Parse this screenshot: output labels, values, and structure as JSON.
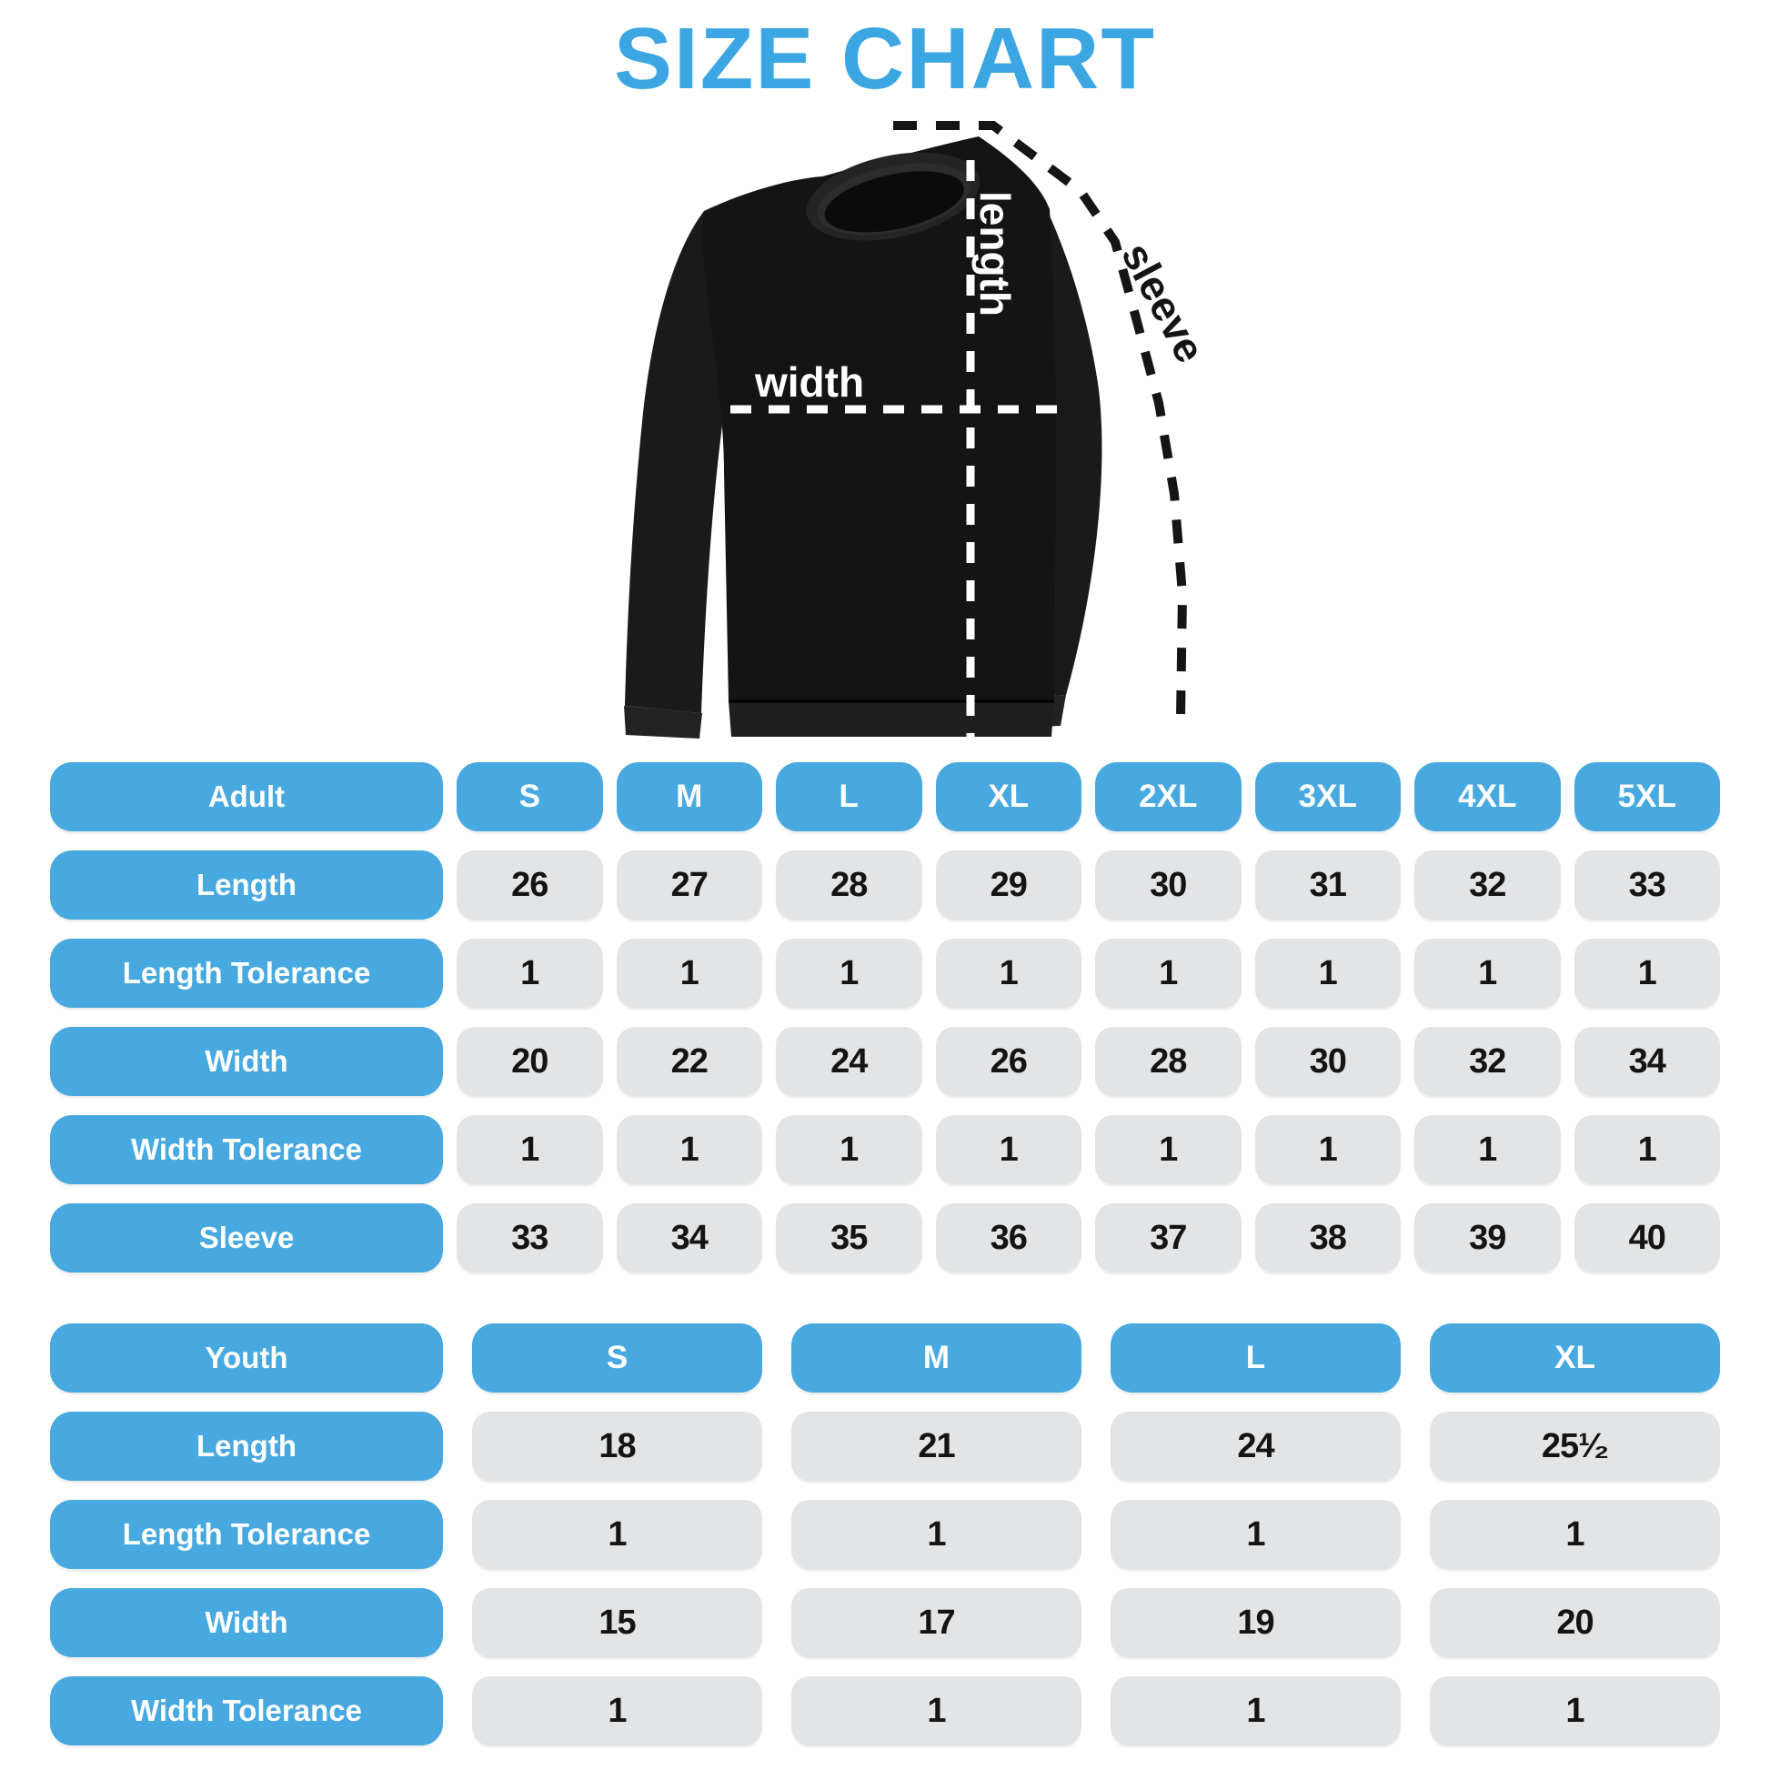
{
  "title": "SIZE CHART",
  "colors": {
    "title_blue": "#3BA6E1",
    "pill_blue": "#47A9E0",
    "cell_gray": "#E3E4E6",
    "number_dark": "#141414",
    "garment_black": "#141414",
    "measure_line_white": "#FFFFFF",
    "measure_line_black": "#151515"
  },
  "diagram": {
    "garment": "crewneck-sweatshirt",
    "labels": {
      "width": "width",
      "length": "length",
      "sleeve": "sleeve"
    }
  },
  "adult_table": {
    "header": {
      "label": "Adult",
      "sizes": [
        "S",
        "M",
        "L",
        "XL",
        "2XL",
        "3XL",
        "4XL",
        "5XL"
      ]
    },
    "rows": [
      {
        "label": "Length",
        "values": [
          "26",
          "27",
          "28",
          "29",
          "30",
          "31",
          "32",
          "33"
        ]
      },
      {
        "label": "Length Tolerance",
        "values": [
          "1",
          "1",
          "1",
          "1",
          "1",
          "1",
          "1",
          "1"
        ]
      },
      {
        "label": "Width",
        "values": [
          "20",
          "22",
          "24",
          "26",
          "28",
          "30",
          "32",
          "34"
        ]
      },
      {
        "label": "Width Tolerance",
        "values": [
          "1",
          "1",
          "1",
          "1",
          "1",
          "1",
          "1",
          "1"
        ]
      },
      {
        "label": "Sleeve",
        "values": [
          "33",
          "34",
          "35",
          "36",
          "37",
          "38",
          "39",
          "40"
        ]
      }
    ]
  },
  "youth_table": {
    "header": {
      "label": "Youth",
      "sizes": [
        "S",
        "M",
        "L",
        "XL"
      ]
    },
    "rows": [
      {
        "label": "Length",
        "values": [
          "18",
          "21",
          "24",
          "25¹⁄₂"
        ]
      },
      {
        "label": "Length Tolerance",
        "values": [
          "1",
          "1",
          "1",
          "1"
        ]
      },
      {
        "label": "Width",
        "values": [
          "15",
          "17",
          "19",
          "20"
        ]
      },
      {
        "label": "Width Tolerance",
        "values": [
          "1",
          "1",
          "1",
          "1"
        ]
      }
    ]
  },
  "chart_data": [
    {
      "type": "table",
      "title": "Adult",
      "columns": [
        "Adult",
        "S",
        "M",
        "L",
        "XL",
        "2XL",
        "3XL",
        "4XL",
        "5XL"
      ],
      "rows": [
        [
          "Length",
          26,
          27,
          28,
          29,
          30,
          31,
          32,
          33
        ],
        [
          "Length Tolerance",
          1,
          1,
          1,
          1,
          1,
          1,
          1,
          1
        ],
        [
          "Width",
          20,
          22,
          24,
          26,
          28,
          30,
          32,
          34
        ],
        [
          "Width Tolerance",
          1,
          1,
          1,
          1,
          1,
          1,
          1,
          1
        ],
        [
          "Sleeve",
          33,
          34,
          35,
          36,
          37,
          38,
          39,
          40
        ]
      ]
    },
    {
      "type": "table",
      "title": "Youth",
      "columns": [
        "Youth",
        "S",
        "M",
        "L",
        "XL"
      ],
      "rows": [
        [
          "Length",
          18,
          21,
          24,
          25.5
        ],
        [
          "Length Tolerance",
          1,
          1,
          1,
          1
        ],
        [
          "Width",
          15,
          17,
          19,
          20
        ],
        [
          "Width Tolerance",
          1,
          1,
          1,
          1
        ]
      ]
    }
  ]
}
